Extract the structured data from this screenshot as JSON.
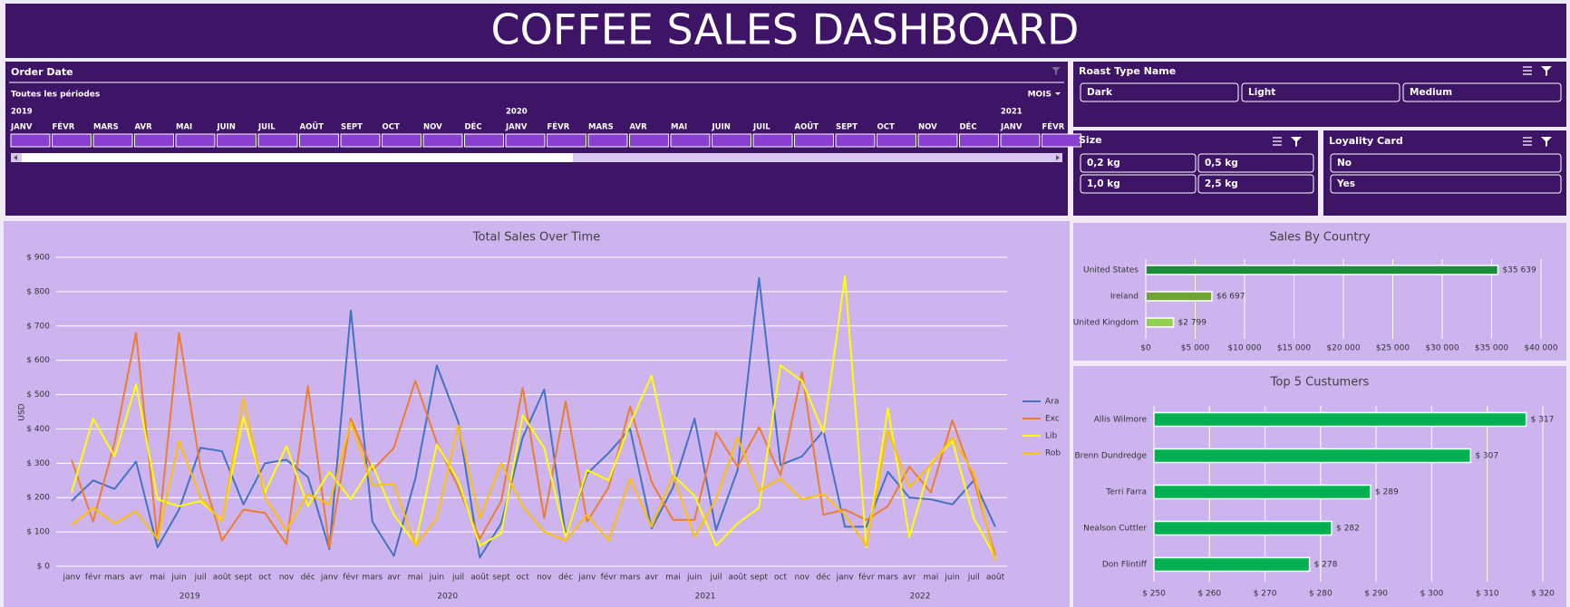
{
  "header": {
    "title": "COFFEE SALES DASHBOARD"
  },
  "slicers": {
    "order_date": {
      "title": "Order Date",
      "period": "Toutes les périodes",
      "level": "MOIS",
      "years": [
        {
          "index": 0,
          "label": "2019"
        },
        {
          "index": 12,
          "label": "2020"
        },
        {
          "index": 24,
          "label": "2021"
        }
      ],
      "months": [
        "JANV",
        "FÉVR",
        "MARS",
        "AVR",
        "MAI",
        "JUIN",
        "JUIL",
        "AOÛT",
        "SEPT",
        "OCT",
        "NOV",
        "DÉC",
        "JANV",
        "FÉVR",
        "MARS",
        "AVR",
        "MAI",
        "JUIN",
        "JUIL",
        "AOÛT",
        "SEPT",
        "OCT",
        "NOV",
        "DÉC",
        "JANV",
        "FÉVR"
      ]
    },
    "roast": {
      "title": "Roast Type Name",
      "items": [
        "Dark",
        "Light",
        "Medium"
      ]
    },
    "size": {
      "title": "Size",
      "items": [
        "0,2 kg",
        "0,5 kg",
        "1,0 kg",
        "2,5 kg"
      ]
    },
    "loyalty": {
      "title": "Loyality Card",
      "items": [
        "No",
        "Yes"
      ]
    }
  },
  "chart_data": [
    {
      "type": "line",
      "title": "Total Sales Over Time",
      "y_label": "USD",
      "categories": [
        "janv",
        "févr",
        "mars",
        "avr",
        "mai",
        "juin",
        "juil",
        "août",
        "sept",
        "oct",
        "nov",
        "déc",
        "janv",
        "févr",
        "mars",
        "avr",
        "mai",
        "juin",
        "juil",
        "août",
        "sept",
        "oct",
        "nov",
        "déc",
        "janv",
        "févr",
        "mars",
        "avr",
        "mai",
        "juin",
        "juil",
        "août",
        "sept",
        "oct",
        "nov",
        "déc",
        "janv",
        "févr",
        "mars",
        "avr",
        "mai",
        "juin",
        "juil",
        "août"
      ],
      "years": [
        "2019",
        "2020",
        "2021",
        "2022"
      ],
      "ylim": [
        0,
        900
      ],
      "yticks": [
        {
          "value": 0,
          "label": "$ 0"
        },
        {
          "value": 100,
          "label": "$ 100"
        },
        {
          "value": 200,
          "label": "$ 200"
        },
        {
          "value": 300,
          "label": "$ 300"
        },
        {
          "value": 400,
          "label": "$ 400"
        },
        {
          "value": 500,
          "label": "$ 500"
        },
        {
          "value": 600,
          "label": "$ 600"
        },
        {
          "value": 700,
          "label": "$ 700"
        },
        {
          "value": 800,
          "label": "$ 800"
        },
        {
          "value": 900,
          "label": "$ 900"
        }
      ],
      "grid": true,
      "legend": "right",
      "series": [
        {
          "name": "Ara",
          "color": "#4472c4",
          "values": [
            190,
            250,
            225,
            305,
            55,
            165,
            345,
            335,
            180,
            300,
            310,
            260,
            50,
            745,
            130,
            30,
            255,
            585,
            420,
            25,
            125,
            375,
            515,
            90,
            270,
            330,
            400,
            110,
            230,
            430,
            105,
            280,
            840,
            295,
            320,
            395,
            115,
            115,
            275,
            200,
            195,
            180,
            250,
            115
          ]
        },
        {
          "name": "Exc",
          "color": "#ed7d31",
          "values": [
            310,
            130,
            360,
            680,
            75,
            680,
            285,
            75,
            165,
            155,
            65,
            525,
            55,
            430,
            280,
            345,
            540,
            360,
            230,
            80,
            190,
            520,
            140,
            480,
            130,
            230,
            465,
            245,
            135,
            135,
            390,
            290,
            405,
            265,
            565,
            150,
            165,
            135,
            175,
            290,
            215,
            425,
            250,
            30
          ]
        },
        {
          "name": "Lib",
          "color": "#ffff00",
          "values": [
            215,
            430,
            320,
            530,
            195,
            175,
            190,
            135,
            435,
            215,
            350,
            175,
            275,
            195,
            295,
            150,
            65,
            355,
            250,
            60,
            95,
            440,
            345,
            85,
            280,
            250,
            415,
            555,
            265,
            205,
            60,
            125,
            170,
            585,
            540,
            390,
            845,
            55,
            460,
            85,
            300,
            365,
            140,
            25
          ]
        },
        {
          "name": "Rob",
          "color": "#ffc000",
          "values": [
            120,
            170,
            125,
            160,
            80,
            365,
            200,
            130,
            490,
            200,
            105,
            210,
            180,
            420,
            235,
            240,
            60,
            140,
            410,
            140,
            300,
            175,
            100,
            75,
            150,
            75,
            255,
            115,
            265,
            85,
            195,
            375,
            220,
            255,
            195,
            210,
            150,
            60,
            395,
            230,
            295,
            375,
            270,
            15
          ]
        }
      ]
    },
    {
      "type": "hbar",
      "title": "Sales By Country",
      "categories": [
        "United States",
        "Ireland",
        "United Kingdom"
      ],
      "values": [
        35639,
        6697,
        2799
      ],
      "value_labels": [
        "$35 639",
        "$6 697",
        "$2 799"
      ],
      "colors": [
        "#1e8c3a",
        "#6fa332",
        "#92d050"
      ],
      "xlim": [
        0,
        40000
      ],
      "xticks": [
        {
          "value": 0,
          "label": "$0"
        },
        {
          "value": 5000,
          "label": "$5 000"
        },
        {
          "value": 10000,
          "label": "$10 000"
        },
        {
          "value": 15000,
          "label": "$15 000"
        },
        {
          "value": 20000,
          "label": "$20 000"
        },
        {
          "value": 25000,
          "label": "$25 000"
        },
        {
          "value": 30000,
          "label": "$30 000"
        },
        {
          "value": 35000,
          "label": "$35 000"
        },
        {
          "value": 40000,
          "label": "$40 000"
        }
      ],
      "grid": true
    },
    {
      "type": "hbar",
      "title": "Top 5 Custumers",
      "categories": [
        "Allis Wilmore",
        "Brenn Dundredge",
        "Terri Farra",
        "Nealson Cuttler",
        "Don Flintiff"
      ],
      "values": [
        317,
        307,
        289,
        282,
        278
      ],
      "value_labels": [
        "$ 317",
        "$ 307",
        "$ 289",
        "$ 282",
        "$ 278"
      ],
      "color": "#00b050",
      "xlim": [
        250,
        320
      ],
      "xticks": [
        {
          "value": 250,
          "label": "$ 250"
        },
        {
          "value": 260,
          "label": "$ 260"
        },
        {
          "value": 270,
          "label": "$ 270"
        },
        {
          "value": 280,
          "label": "$ 280"
        },
        {
          "value": 290,
          "label": "$ 290"
        },
        {
          "value": 300,
          "label": "$ 300"
        },
        {
          "value": 310,
          "label": "$ 310"
        },
        {
          "value": 320,
          "label": "$ 320"
        }
      ],
      "grid": true
    }
  ]
}
